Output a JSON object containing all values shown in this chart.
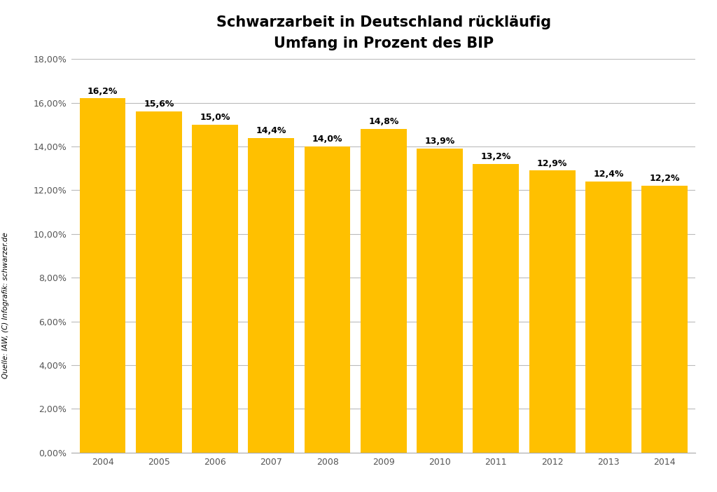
{
  "title_line1": "Schwarzarbeit in Deutschland rückläufig",
  "title_line2": "Umfang in Prozent des BIP",
  "years": [
    "2004",
    "2005",
    "2006",
    "2007",
    "2008",
    "2009",
    "2010",
    "2011",
    "2012",
    "2013",
    "2014"
  ],
  "values": [
    16.2,
    15.6,
    15.0,
    14.4,
    14.0,
    14.8,
    13.9,
    13.2,
    12.9,
    12.4,
    12.2
  ],
  "labels": [
    "16,2%",
    "15,6%",
    "15,0%",
    "14,4%",
    "14,0%",
    "14,8%",
    "13,9%",
    "13,2%",
    "12,9%",
    "12,4%",
    "12,2%"
  ],
  "bar_color": "#FFC000",
  "bar_edge_color": "#FFC000",
  "ylim": [
    0,
    18
  ],
  "yticks": [
    0,
    2,
    4,
    6,
    8,
    10,
    12,
    14,
    16,
    18
  ],
  "ytick_labels": [
    "0,00%",
    "2,00%",
    "4,00%",
    "6,00%",
    "8,00%",
    "10,00%",
    "12,00%",
    "14,00%",
    "16,00%",
    "18,00%"
  ],
  "background_color": "#FFFFFF",
  "grid_color": "#BBBBBB",
  "source_text": "Quelle: IAW, (C) Infografik: schwarzer.de",
  "title_fontsize": 15,
  "label_fontsize": 9,
  "tick_fontsize": 9,
  "source_fontsize": 7.5
}
